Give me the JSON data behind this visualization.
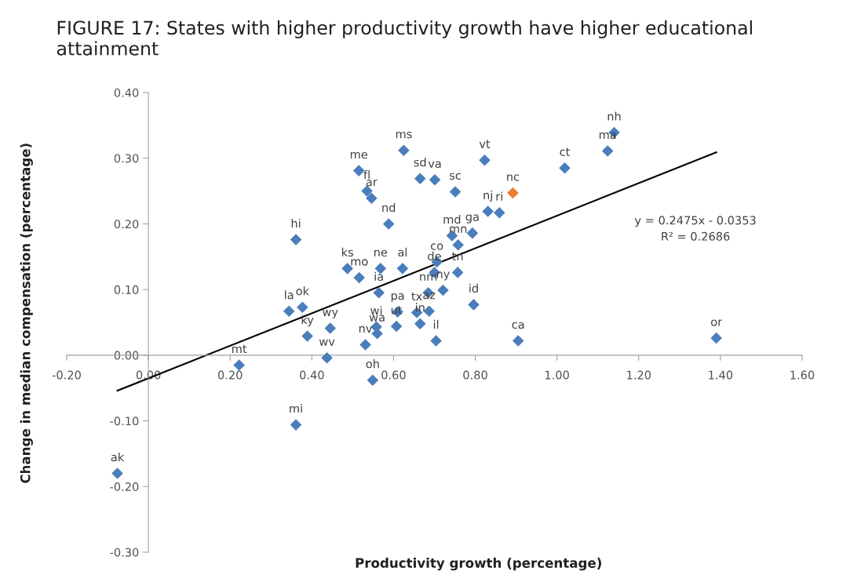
{
  "chart_data": {
    "type": "scatter",
    "title": "FIGURE 17: States with higher productivity growth have higher educational attainment",
    "xlabel": "Productivity growth (percentage)",
    "ylabel": "Change in median compensation (percentage)",
    "xlim": [
      -0.2,
      1.6
    ],
    "ylim": [
      -0.3,
      0.4
    ],
    "xticks": [
      {
        "value": -0.2,
        "label": "-0.20"
      },
      {
        "value": 0,
        "label": "0.00"
      },
      {
        "value": 0.2,
        "label": "0.20"
      },
      {
        "value": 0.4,
        "label": "0.40"
      },
      {
        "value": 0.6,
        "label": "0.60"
      },
      {
        "value": 0.8,
        "label": "0.80"
      },
      {
        "value": 1.0,
        "label": "1.00"
      },
      {
        "value": 1.2,
        "label": "1.20"
      },
      {
        "value": 1.4,
        "label": "1.40"
      },
      {
        "value": 1.6,
        "label": "1.60"
      }
    ],
    "yticks": [
      {
        "value": -0.3,
        "label": "-0.30"
      },
      {
        "value": -0.2,
        "label": "-0.20"
      },
      {
        "value": -0.1,
        "label": "-0.10"
      },
      {
        "value": 0,
        "label": "0.00"
      },
      {
        "value": 0.1,
        "label": "0.10"
      },
      {
        "value": 0.2,
        "label": "0.20"
      },
      {
        "value": 0.3,
        "label": "0.30"
      },
      {
        "value": 0.4,
        "label": "0.40"
      }
    ],
    "grid": false,
    "legend": false,
    "series": [
      {
        "marker": "diamond",
        "x": [
          -0.076,
          0.361,
          0.222,
          0.437,
          0.549,
          0.344,
          0.377,
          0.389,
          0.445,
          0.531,
          0.558,
          0.56,
          0.564,
          0.61,
          0.607,
          0.657,
          0.687,
          0.665,
          0.685,
          0.721,
          0.706,
          0.7,
          0.757,
          0.704,
          0.796,
          0.905,
          1.39,
          0.487,
          0.516,
          0.568,
          0.622,
          0.361,
          0.588,
          0.515,
          0.535,
          0.546,
          0.625,
          0.665,
          0.701,
          0.751,
          0.823,
          0.892,
          0.831,
          0.859,
          0.743,
          0.758,
          0.793,
          1.019,
          1.124,
          1.14
        ],
        "values": [
          -0.18,
          -0.106,
          -0.015,
          -0.004,
          -0.038,
          0.067,
          0.073,
          0.029,
          0.041,
          0.016,
          0.043,
          0.033,
          0.095,
          0.066,
          0.044,
          0.065,
          0.067,
          0.048,
          0.095,
          0.099,
          0.142,
          0.126,
          0.126,
          0.022,
          0.077,
          0.022,
          0.026,
          0.132,
          0.118,
          0.132,
          0.132,
          0.176,
          0.2,
          0.281,
          0.25,
          0.239,
          0.312,
          0.269,
          0.267,
          0.249,
          0.297,
          0.247,
          0.219,
          0.217,
          0.182,
          0.168,
          0.186,
          0.285,
          0.311,
          0.339
        ],
        "colors": [
          "#4a7ebb",
          "#4a7ebb",
          "#4a7ebb",
          "#4a7ebb",
          "#4a7ebb",
          "#4a7ebb",
          "#4a7ebb",
          "#4a7ebb",
          "#4a7ebb",
          "#4a7ebb",
          "#4a7ebb",
          "#4a7ebb",
          "#4a7ebb",
          "#4a7ebb",
          "#4a7ebb",
          "#4a7ebb",
          "#4a7ebb",
          "#4a7ebb",
          "#4a7ebb",
          "#4a7ebb",
          "#4a7ebb",
          "#4a7ebb",
          "#4a7ebb",
          "#4a7ebb",
          "#4a7ebb",
          "#4a7ebb",
          "#4a7ebb",
          "#4a7ebb",
          "#4a7ebb",
          "#4a7ebb",
          "#4a7ebb",
          "#4a7ebb",
          "#4a7ebb",
          "#4a7ebb",
          "#4a7ebb",
          "#4a7ebb",
          "#4a7ebb",
          "#4a7ebb",
          "#4a7ebb",
          "#4a7ebb",
          "#4a7ebb",
          "#ed7d31",
          "#4a7ebb",
          "#4a7ebb",
          "#4a7ebb",
          "#4a7ebb",
          "#4a7ebb",
          "#4a7ebb",
          "#4a7ebb",
          "#4a7ebb"
        ],
        "value_labels": [
          "ak",
          "mi",
          "mt",
          "wv",
          "oh",
          "la",
          "ok",
          "ky",
          "wy",
          "nv",
          "wi",
          "wa",
          "ia",
          "pa",
          "ut",
          "tx",
          "az",
          "in",
          "nm",
          "ny",
          "co",
          "de",
          "tn",
          "il",
          "id",
          "ca",
          "or",
          "ks",
          "mo",
          "ne",
          "al",
          "hi",
          "nd",
          "me",
          "fl",
          "ar",
          "ms",
          "sd",
          "va",
          "sc",
          "vt",
          "nc",
          "nj",
          "ri",
          "md",
          "mn",
          "ga",
          "ct",
          "ma",
          "nh"
        ]
      },
      {
        "type": "line",
        "color": "#000000",
        "x": [
          -0.076,
          1.39
        ],
        "values": [
          -0.054,
          0.309
        ]
      }
    ],
    "annotations": [
      "y = 0.2475x - 0.0353",
      "R² = 0.2686"
    ]
  }
}
